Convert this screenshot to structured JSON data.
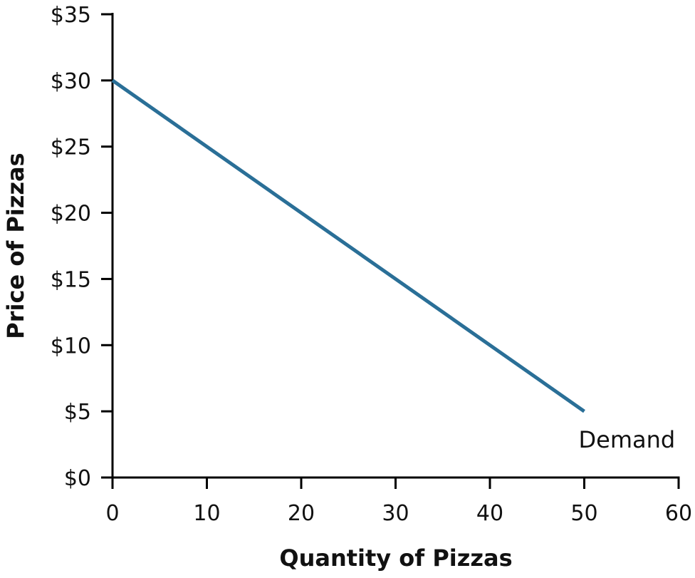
{
  "chart_data": {
    "type": "line",
    "title": "",
    "xlabel": "Quantity of Pizzas",
    "ylabel": "Price of Pizzas",
    "xlim": [
      0,
      60
    ],
    "ylim": [
      0,
      35
    ],
    "x_ticks": [
      0,
      10,
      20,
      30,
      40,
      50,
      60
    ],
    "x_tick_labels": [
      "0",
      "10",
      "20",
      "30",
      "40",
      "50",
      "60"
    ],
    "y_ticks": [
      0,
      5,
      10,
      15,
      20,
      25,
      30,
      35
    ],
    "y_tick_labels": [
      "$0",
      "$5",
      "$10",
      "$15",
      "$20",
      "$25",
      "$30",
      "$35"
    ],
    "grid": false,
    "series": [
      {
        "name": "Demand",
        "color": "#2a6f97",
        "points": [
          {
            "x": 0,
            "y": 30
          },
          {
            "x": 50,
            "y": 5
          }
        ]
      }
    ]
  }
}
